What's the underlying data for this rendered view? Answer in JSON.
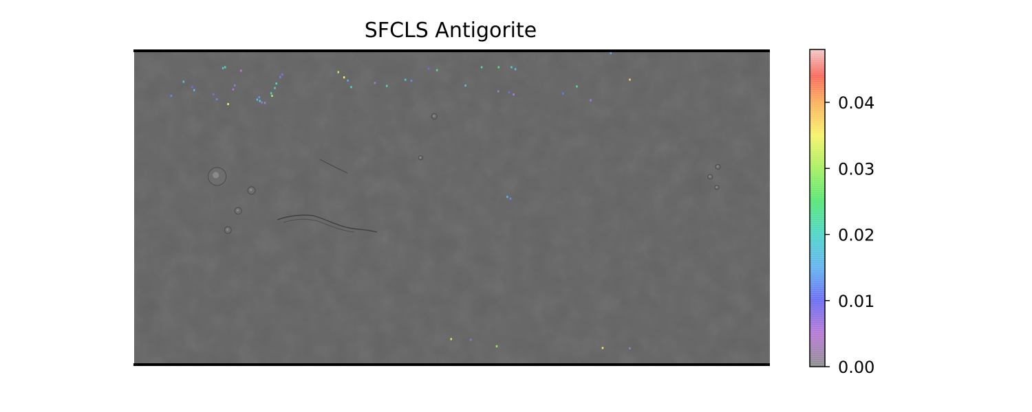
{
  "figure": {
    "title": "SFCLS Antigorite"
  },
  "colors": {
    "map_background": "#646464",
    "map_border": "#000000",
    "page_background": "#ffffff"
  },
  "colorbar": {
    "min": 0.0,
    "max": 0.048,
    "tick_values": [
      0.0,
      0.01,
      0.02,
      0.03,
      0.04
    ],
    "tick_labels": [
      "0.00",
      "0.01",
      "0.02",
      "0.03",
      "0.04"
    ],
    "stops": [
      {
        "value": 0.0,
        "color": "#8f8f8f"
      },
      {
        "value": 0.005,
        "color": "#b77ad6"
      },
      {
        "value": 0.01,
        "color": "#6a6ef2"
      },
      {
        "value": 0.015,
        "color": "#63b4f0"
      },
      {
        "value": 0.02,
        "color": "#4fd6c9"
      },
      {
        "value": 0.025,
        "color": "#57e676"
      },
      {
        "value": 0.03,
        "color": "#a6f062"
      },
      {
        "value": 0.035,
        "color": "#f7f36a"
      },
      {
        "value": 0.04,
        "color": "#fbb15e"
      },
      {
        "value": 0.044,
        "color": "#f7695c"
      },
      {
        "value": 0.048,
        "color": "#f1c9c9"
      }
    ]
  },
  "chart_data": {
    "type": "heatmap",
    "title": "SFCLS Antigorite",
    "xlabel": "",
    "ylabel": "",
    "value_range": [
      0.0,
      0.048
    ],
    "legend": "right",
    "colorbar_ticks": [
      "0.00",
      "0.01",
      "0.02",
      "0.03",
      "0.04"
    ],
    "detections": [
      {
        "lon": -159.1,
        "lat": 64.2,
        "value": 0.012
      },
      {
        "lon": -152.1,
        "lat": 72.3,
        "value": 0.018
      },
      {
        "lon": -147.2,
        "lat": 69.3,
        "value": 0.01
      },
      {
        "lon": -146.1,
        "lat": 67.5,
        "value": 0.015
      },
      {
        "lon": -135.2,
        "lat": 65.1,
        "value": 0.009
      },
      {
        "lon": -133.3,
        "lat": 62.3,
        "value": 0.012
      },
      {
        "lon": -129.8,
        "lat": 80.1,
        "value": 0.016
      },
      {
        "lon": -128.6,
        "lat": 80.6,
        "value": 0.022
      },
      {
        "lon": -126.9,
        "lat": 59.5,
        "value": 0.035
      },
      {
        "lon": -124.0,
        "lat": 67.9,
        "value": 0.006
      },
      {
        "lon": -123.1,
        "lat": 70.2,
        "value": 0.007
      },
      {
        "lon": -119.6,
        "lat": 78.6,
        "value": 0.005
      },
      {
        "lon": -110.4,
        "lat": 62.1,
        "value": 0.016
      },
      {
        "lon": -109.3,
        "lat": 63.4,
        "value": 0.013
      },
      {
        "lon": -108.9,
        "lat": 61.3,
        "value": 0.019
      },
      {
        "lon": -107.8,
        "lat": 60.5,
        "value": 0.007
      },
      {
        "lon": -106.1,
        "lat": 60.2,
        "value": 0.004
      },
      {
        "lon": -102.5,
        "lat": 65.7,
        "value": 0.02
      },
      {
        "lon": -102.0,
        "lat": 64.2,
        "value": 0.03
      },
      {
        "lon": -100.4,
        "lat": 68.7,
        "value": 0.018
      },
      {
        "lon": -99.6,
        "lat": 71.3,
        "value": 0.021
      },
      {
        "lon": -97.4,
        "lat": 75.0,
        "value": 0.012
      },
      {
        "lon": -96.2,
        "lat": 76.4,
        "value": 0.008
      },
      {
        "lon": -64.5,
        "lat": 77.8,
        "value": 0.031
      },
      {
        "lon": -61.2,
        "lat": 74.8,
        "value": 0.035
      },
      {
        "lon": -59.1,
        "lat": 73.0,
        "value": 0.014
      },
      {
        "lon": -57.2,
        "lat": 69.2,
        "value": 0.02
      },
      {
        "lon": -43.8,
        "lat": 71.6,
        "value": 0.006
      },
      {
        "lon": -37.0,
        "lat": 69.9,
        "value": 0.022
      },
      {
        "lon": -26.5,
        "lat": 73.4,
        "value": 0.019
      },
      {
        "lon": -23.1,
        "lat": 72.9,
        "value": 0.012
      },
      {
        "lon": -13.3,
        "lat": 79.8,
        "value": 0.01
      },
      {
        "lon": -8.6,
        "lat": 78.9,
        "value": 0.024
      },
      {
        "lon": 7.5,
        "lat": 70.1,
        "value": 0.017
      },
      {
        "lon": 16.7,
        "lat": 80.6,
        "value": 0.021
      },
      {
        "lon": 26.3,
        "lat": 80.6,
        "value": 0.024
      },
      {
        "lon": 33.6,
        "lat": 80.6,
        "value": 0.019
      },
      {
        "lon": 35.8,
        "lat": 79.5,
        "value": 0.016
      },
      {
        "lon": 26.1,
        "lat": 66.8,
        "value": 0.006
      },
      {
        "lon": 32.3,
        "lat": 66.2,
        "value": 0.01
      },
      {
        "lon": 34.8,
        "lat": 65.0,
        "value": 0.005
      },
      {
        "lon": 62.8,
        "lat": 65.6,
        "value": 0.011
      },
      {
        "lon": 70.6,
        "lat": 69.6,
        "value": 0.023
      },
      {
        "lon": 78.4,
        "lat": 61.7,
        "value": 0.006
      },
      {
        "lon": 100.6,
        "lat": 73.5,
        "value": 0.038
      },
      {
        "lon": 89.8,
        "lat": 88.7,
        "value": 0.014
      },
      {
        "lon": 31.2,
        "lat": 6.4,
        "value": 0.015
      },
      {
        "lon": 33.0,
        "lat": 5.4,
        "value": 0.012
      },
      {
        "lon": -0.6,
        "lat": -75.0,
        "value": 0.032
      },
      {
        "lon": 10.5,
        "lat": -75.4,
        "value": 0.008
      },
      {
        "lon": 25.2,
        "lat": -79.1,
        "value": 0.029
      },
      {
        "lon": 85.2,
        "lat": -80.1,
        "value": 0.036
      },
      {
        "lon": 100.6,
        "lat": -80.3,
        "value": 0.006
      }
    ],
    "map_features": [
      {
        "name": "large-volcano",
        "lon": -133.0,
        "lat": 18.1,
        "r": 1.3
      },
      {
        "name": "volcano-1",
        "lon": -113.6,
        "lat": 10.1,
        "r": 0.55
      },
      {
        "name": "volcano-2",
        "lon": -121.1,
        "lat": -1.6,
        "r": 0.5
      },
      {
        "name": "volcano-3",
        "lon": -126.9,
        "lat": -12.6,
        "r": 0.5
      },
      {
        "name": "volcano-4",
        "lon": 150.6,
        "lat": 23.6,
        "r": 0.35
      },
      {
        "name": "volcano-5",
        "lon": 146.2,
        "lat": 17.9,
        "r": 0.35
      },
      {
        "name": "volcano-6",
        "lon": 150.0,
        "lat": 11.8,
        "r": 0.3
      },
      {
        "name": "crater-1",
        "lon": -10.0,
        "lat": 52.5,
        "r": 0.4
      },
      {
        "name": "crater-2",
        "lon": -17.8,
        "lat": 28.8,
        "r": 0.3
      }
    ]
  }
}
